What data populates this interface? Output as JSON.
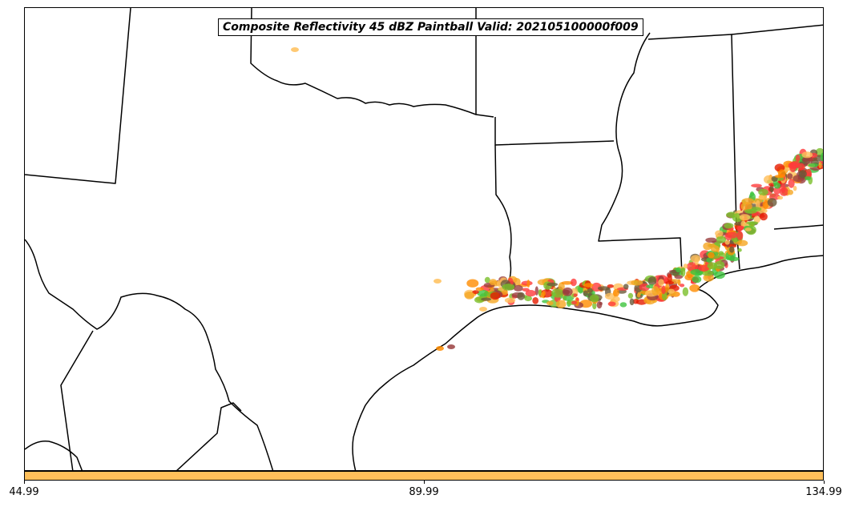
{
  "title": "Composite Reflectivity 45 dBZ Paintball Valid: 202105100000f009",
  "colorbar": {
    "color": "#ffbf5a",
    "ticks": [
      "44.99",
      "89.99",
      "134.99"
    ]
  },
  "paintball_colors": [
    "#ff3b3b",
    "#e61c00",
    "#ff8c00",
    "#f5a623",
    "#9a3f3f",
    "#6b5a3a",
    "#3fc43f",
    "#7bbf2a",
    "#ffbf5a"
  ]
}
